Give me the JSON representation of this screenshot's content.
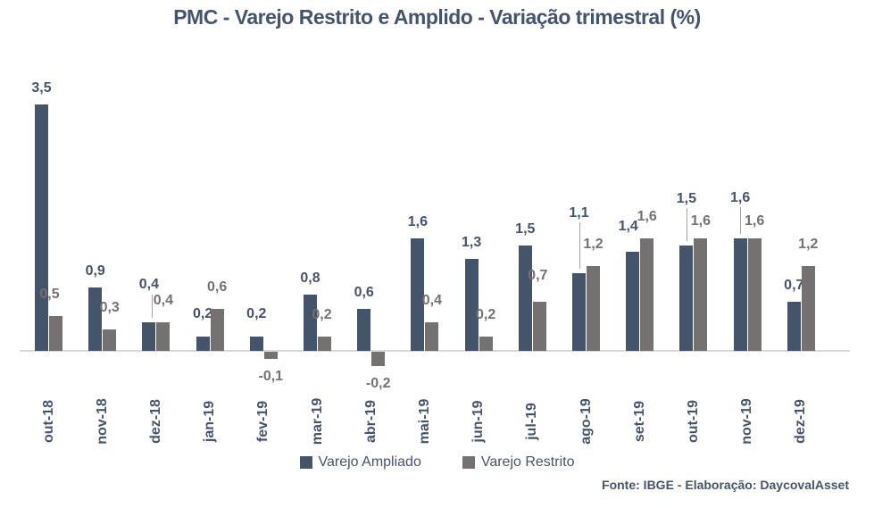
{
  "title": "PMC - Varejo Restrito e Amplido - Variação trimestral (%)",
  "source": "Fonte: IBGE - Elaboração: DaycovalAsset",
  "colors": {
    "ampliado": "#44546A",
    "restrito": "#767171",
    "axis_line": "#D9D9D9",
    "leader_line": "#A6A6A6",
    "title_text": "#44546A",
    "background": "#FFFFFF"
  },
  "legend": {
    "items": [
      "Varejo Ampliado",
      "Varejo Restrito"
    ]
  },
  "chart_data": {
    "type": "bar",
    "title": "PMC - Varejo Restrito e Amplido - Variação trimestral (%)",
    "xlabel": "",
    "ylabel": "",
    "ylim": [
      -0.4,
      3.8
    ],
    "grid": false,
    "legend_position": "bottom",
    "value_labels": true,
    "decimal_format": "pt-BR-comma",
    "categories": [
      "out-18",
      "nov-18",
      "dez-18",
      "jan-19",
      "fev-19",
      "mar-19",
      "abr-19",
      "mai-19",
      "jun-19",
      "jul-19",
      "ago-19",
      "set-19",
      "out-19",
      "nov-19",
      "dez-19"
    ],
    "series": [
      {
        "key": "ampliado",
        "name": "Varejo Ampliado",
        "color": "#44546A",
        "values": [
          3.5,
          0.9,
          0.4,
          0.2,
          0.2,
          0.8,
          0.6,
          1.6,
          1.3,
          1.5,
          1.1,
          1.4,
          1.5,
          1.6,
          0.7
        ],
        "value_labels": [
          "3,5",
          "0,9",
          "0,4",
          "0,2",
          "0,2",
          "0,8",
          "0,6",
          "1,6",
          "1,3",
          "1,5",
          "1,1",
          "1,4",
          "1,5",
          "1,6",
          "0,7"
        ]
      },
      {
        "key": "restrito",
        "name": "Varejo Restrito",
        "color": "#767171",
        "values": [
          0.5,
          0.3,
          0.4,
          0.6,
          -0.1,
          0.2,
          -0.2,
          0.4,
          0.2,
          0.7,
          1.2,
          1.6,
          1.6,
          1.6,
          1.2
        ],
        "value_labels": [
          "0,5",
          "0,3",
          "0,4",
          "0,6",
          "-0,1",
          "0,2",
          "-0,2",
          "0,4",
          "0,2",
          "0,7",
          "1,2",
          "1,6",
          "1,6",
          "1,6",
          "1,2"
        ]
      }
    ],
    "label_overrides": {
      "ampliado": {
        "2": {
          "raise": 24
        },
        "3": {
          "raise": 7
        },
        "4": {
          "raise": 7
        },
        "10": {
          "raise": 49,
          "leader": true
        },
        "11": {
          "raise": 10,
          "dx": -5
        },
        "12": {
          "raise": 34,
          "leader": true
        },
        "13": {
          "raise": 27,
          "leader": true
        }
      },
      "restrito": {
        "0": {
          "dx": -7
        },
        "2": {
          "leader": true,
          "leader_dx": -13,
          "leader_y1": 2
        },
        "5": {
          "dx": -3
        },
        "9": {
          "raise": 5,
          "dx": -2
        },
        "12": {
          "raise": -5
        },
        "13": {
          "raise": -5
        }
      }
    }
  }
}
